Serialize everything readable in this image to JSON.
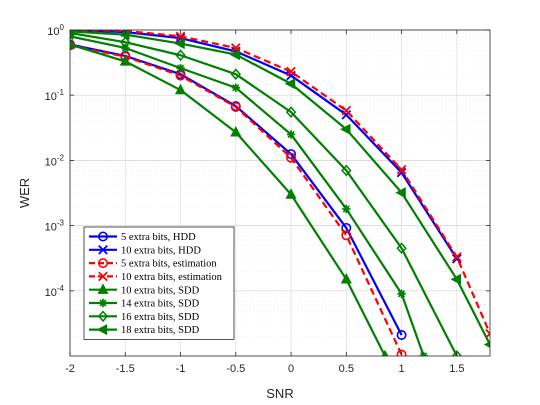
{
  "chart_data": {
    "type": "line",
    "xlabel": "SNR",
    "ylabel": "WER",
    "xlim": [
      -2,
      1.8
    ],
    "ylim": [
      1e-05,
      1
    ],
    "y_scale": "log",
    "grid": true,
    "minor_grid": true,
    "legend_position": "lower-left",
    "x_ticks": [
      -2,
      -1.5,
      -1,
      -0.5,
      0,
      0.5,
      1,
      1.5
    ],
    "x_tick_labels": [
      "-2",
      "-1.5",
      "-1",
      "-0.5",
      "0",
      "0.5",
      "1",
      "1.5"
    ],
    "y_ticks": [
      0.0001,
      0.001,
      0.01,
      0.1,
      1
    ],
    "y_tick_bases": [
      "10",
      "10",
      "10",
      "10",
      "10"
    ],
    "y_tick_exponents": [
      "-4",
      "-3",
      "-2",
      "-1",
      "0"
    ],
    "series": [
      {
        "name": "5 extra bits, HDD",
        "color": "#0000ff",
        "dash": "solid",
        "marker": "circle",
        "x": [
          -2,
          -1.5,
          -1,
          -0.5,
          0,
          0.5,
          1
        ],
        "y": [
          0.6,
          0.4,
          0.21,
          0.068,
          0.0125,
          0.00092,
          2.1e-05
        ]
      },
      {
        "name": "10 extra bits, HDD",
        "color": "#0000ff",
        "dash": "solid",
        "marker": "x",
        "x": [
          -2,
          -1.5,
          -1,
          -0.5,
          0,
          0.5,
          1,
          1.5
        ],
        "y": [
          0.99,
          0.93,
          0.75,
          0.47,
          0.2,
          0.05,
          0.0065,
          0.00031
        ]
      },
      {
        "name": "5 extra bits, estimation",
        "color": "#ff0000",
        "dash": "dashed",
        "marker": "circle",
        "x": [
          -2,
          -1.5,
          -1,
          -0.5,
          0,
          0.5,
          1
        ],
        "y": [
          0.58,
          0.39,
          0.2,
          0.066,
          0.011,
          0.00071,
          1.05e-05
        ]
      },
      {
        "name": "10 extra bits, estimation",
        "color": "#ff0000",
        "dash": "dashed",
        "marker": "x",
        "x": [
          -2,
          -1.5,
          -1,
          -0.5,
          0,
          0.5,
          1,
          1.5,
          1.8
        ],
        "y": [
          1.0,
          0.97,
          0.8,
          0.53,
          0.23,
          0.058,
          0.0072,
          0.00033,
          2.2e-05
        ]
      },
      {
        "name": "10 extra bits, SDD",
        "color": "#008000",
        "dash": "solid",
        "marker": "triangle",
        "x": [
          -2,
          -1.5,
          -1,
          -0.5,
          0,
          0.5,
          0.85
        ],
        "y": [
          0.6,
          0.33,
          0.12,
          0.027,
          0.003,
          0.00015,
          1e-05
        ]
      },
      {
        "name": "14 extra bits, SDD",
        "color": "#008000",
        "dash": "solid",
        "marker": "asterisk",
        "x": [
          -2,
          -1.5,
          -1,
          -0.5,
          0,
          0.5,
          1,
          1.2
        ],
        "y": [
          0.8,
          0.53,
          0.26,
          0.13,
          0.025,
          0.0018,
          9e-05,
          1e-05
        ]
      },
      {
        "name": "16 extra bits, SDD",
        "color": "#008000",
        "dash": "solid",
        "marker": "diamond",
        "x": [
          -2,
          -1.5,
          -1,
          -0.5,
          0,
          0.5,
          1,
          1.5
        ],
        "y": [
          0.9,
          0.65,
          0.41,
          0.21,
          0.055,
          0.007,
          0.00045,
          1e-05
        ]
      },
      {
        "name": "18 extra bits, SDD",
        "color": "#008000",
        "dash": "solid",
        "marker": "triangle-left",
        "x": [
          -2,
          -1.5,
          -1,
          -0.5,
          0,
          0.5,
          1,
          1.5,
          1.8
        ],
        "y": [
          0.95,
          0.85,
          0.62,
          0.42,
          0.15,
          0.03,
          0.0032,
          0.00015,
          1.5e-05
        ]
      }
    ]
  }
}
